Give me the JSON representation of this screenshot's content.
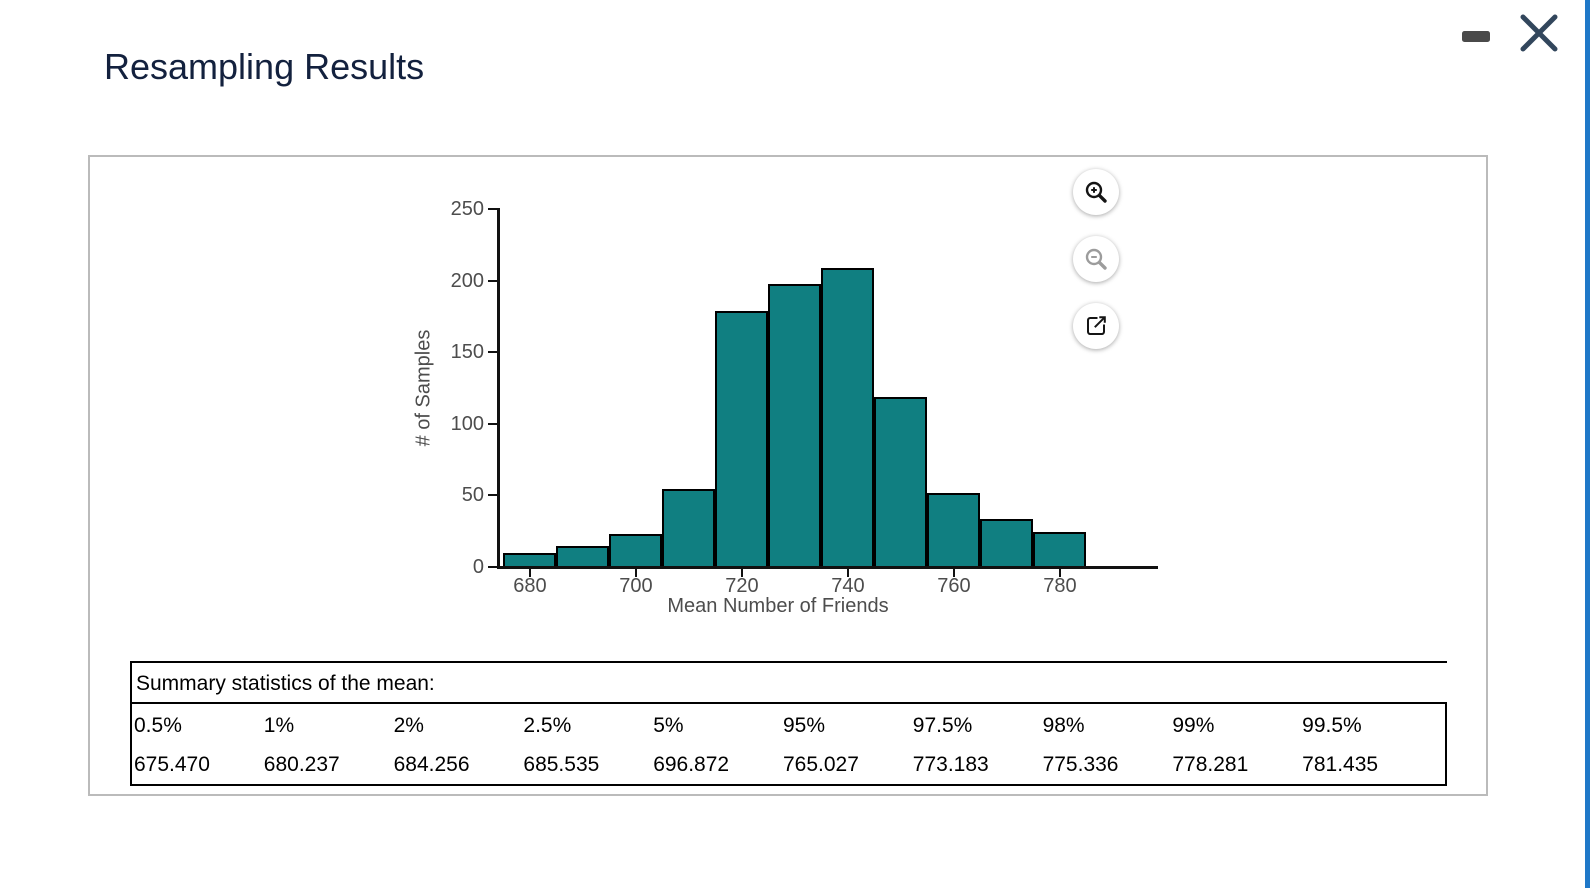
{
  "window": {
    "title": "Resampling Results"
  },
  "icons": {
    "minimize": "minus-dash",
    "close": "x-cross",
    "zoom_in": "magnifier-plus",
    "zoom_out": "magnifier-minus",
    "expand": "external-link-box-arrow"
  },
  "colors": {
    "title_text": "#13213E",
    "bar_fill": "#107F81",
    "bar_border": "#000000",
    "axis_text": "#4D4D4D",
    "content_box_border": "#BBBBBB",
    "right_edge_accent": "#1F78C8",
    "close_icon": "#32465C",
    "minimize_icon": "#4A4A4A"
  },
  "chart_data": {
    "type": "bar",
    "subtype": "histogram",
    "title": "",
    "xlabel": "Mean Number of Friends",
    "ylabel": "# of Samples",
    "bin_start": 675,
    "bin_width": 10,
    "bin_edges": [
      675,
      685,
      695,
      705,
      715,
      725,
      735,
      745,
      755,
      765,
      775,
      785
    ],
    "values": [
      9,
      14,
      22,
      54,
      178,
      197,
      208,
      118,
      51,
      33,
      24
    ],
    "x_ticks": [
      680,
      700,
      720,
      740,
      760,
      780
    ],
    "y_ticks": [
      0,
      50,
      100,
      150,
      200,
      250
    ],
    "xlim": [
      673.8,
      798.5
    ],
    "ylim": [
      0,
      250
    ],
    "grid": false,
    "legend": false
  },
  "table": {
    "title": "Summary statistics of the mean:",
    "columns": [
      "0.5%",
      "1%",
      "2%",
      "2.5%",
      "5%",
      "95%",
      "97.5%",
      "98%",
      "99%",
      "99.5%"
    ],
    "values": [
      "675.470",
      "680.237",
      "684.256",
      "685.535",
      "696.872",
      "765.027",
      "773.183",
      "775.336",
      "778.281",
      "781.435"
    ]
  }
}
